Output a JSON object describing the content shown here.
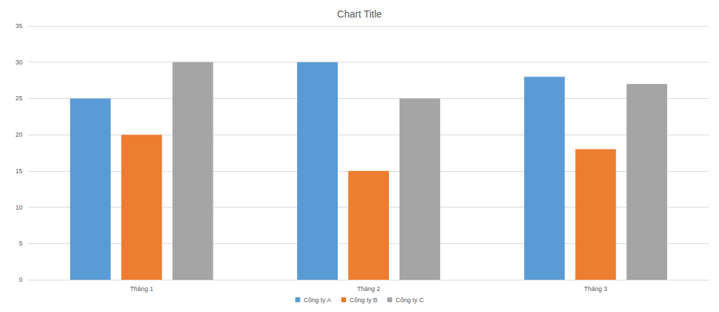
{
  "chart_data": {
    "type": "bar",
    "title": "Chart Title",
    "categories": [
      "Tháng 1",
      "Tháng 2",
      "Tháng 3"
    ],
    "series": [
      {
        "name": "Công ty A",
        "color": "#5b9bd5",
        "values": [
          25,
          30,
          28
        ]
      },
      {
        "name": "Công ty B",
        "color": "#ed7d31",
        "values": [
          20,
          15,
          18
        ]
      },
      {
        "name": "Công ty C",
        "color": "#a5a5a5",
        "values": [
          30,
          25,
          27
        ]
      }
    ],
    "ylim": [
      0,
      35
    ],
    "yticks": [
      0,
      5,
      10,
      15,
      20,
      25,
      30,
      35
    ],
    "grid": true,
    "legend": "bottom"
  }
}
